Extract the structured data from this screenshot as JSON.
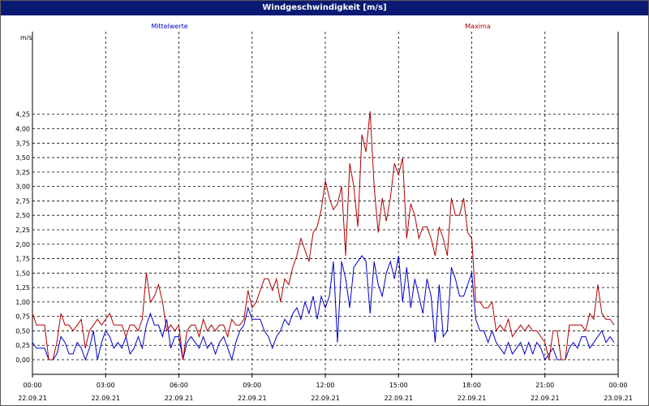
{
  "window": {
    "title": "Windgeschwindigkeit [m/s]"
  },
  "colors": {
    "title_bar": "#0a1a73",
    "series_mean": "#0000c8",
    "series_max": "#b00000",
    "grid": "#000000"
  },
  "chart_data": {
    "type": "line",
    "title": "Windgeschwindigkeit [m/s]",
    "ylabel": "m/s",
    "xlabel": "",
    "ylim": [
      -0.2,
      4.6
    ],
    "xlim": [
      "2021-09-22 00:00",
      "2021-09-23 00:00"
    ],
    "grid": true,
    "legend_position": "top",
    "y_ticks": [
      "0,00",
      "0,25",
      "0,50",
      "0,75",
      "1,00",
      "1,25",
      "1,50",
      "1,75",
      "2,00",
      "2,25",
      "2,50",
      "2,75",
      "3,00",
      "3,25",
      "3,50",
      "3,75",
      "4,00",
      "4,25"
    ],
    "x_ticks": [
      {
        "time": "00:00",
        "date": "22.09.21"
      },
      {
        "time": "03:00",
        "date": "22.09.21"
      },
      {
        "time": "06:00",
        "date": "22.09.21"
      },
      {
        "time": "09:00",
        "date": "22.09.21"
      },
      {
        "time": "12:00",
        "date": "22.09.21"
      },
      {
        "time": "15:00",
        "date": "22.09.21"
      },
      {
        "time": "18:00",
        "date": "22.09.21"
      },
      {
        "time": "21:00",
        "date": "22.09.21"
      },
      {
        "time": "00:00",
        "date": "23.09.21"
      }
    ],
    "series": [
      {
        "name": "Mittelwerte",
        "color": "#0000c8",
        "x": [
          "00:00",
          "00:10",
          "00:20",
          "00:30",
          "00:40",
          "00:50",
          "01:00",
          "01:10",
          "01:20",
          "01:30",
          "01:40",
          "01:50",
          "02:00",
          "02:10",
          "02:20",
          "02:30",
          "02:40",
          "02:50",
          "03:00",
          "03:10",
          "03:20",
          "03:30",
          "03:40",
          "03:50",
          "04:00",
          "04:10",
          "04:20",
          "04:30",
          "04:40",
          "04:50",
          "05:00",
          "05:10",
          "05:20",
          "05:30",
          "05:40",
          "05:50",
          "06:00",
          "06:10",
          "06:20",
          "06:30",
          "06:40",
          "06:50",
          "07:00",
          "07:10",
          "07:20",
          "07:30",
          "07:40",
          "07:50",
          "08:00",
          "08:10",
          "08:20",
          "08:30",
          "08:40",
          "08:50",
          "09:00",
          "09:10",
          "09:20",
          "09:30",
          "09:40",
          "09:50",
          "10:00",
          "10:10",
          "10:20",
          "10:30",
          "10:40",
          "10:50",
          "11:00",
          "11:10",
          "11:20",
          "11:30",
          "11:40",
          "11:50",
          "12:00",
          "12:10",
          "12:20",
          "12:30",
          "12:40",
          "12:50",
          "13:00",
          "13:10",
          "13:20",
          "13:30",
          "13:40",
          "13:50",
          "14:00",
          "14:10",
          "14:20",
          "14:30",
          "14:40",
          "14:50",
          "15:00",
          "15:10",
          "15:20",
          "15:30",
          "15:40",
          "15:50",
          "16:00",
          "16:10",
          "16:20",
          "16:30",
          "16:40",
          "16:50",
          "17:00",
          "17:10",
          "17:20",
          "17:30",
          "17:40",
          "17:50",
          "18:00",
          "18:10",
          "18:20",
          "18:30",
          "18:40",
          "18:50",
          "19:00",
          "19:10",
          "19:20",
          "19:30",
          "19:40",
          "19:50",
          "20:00",
          "20:10",
          "20:20",
          "20:30",
          "20:40",
          "20:50",
          "21:00",
          "21:10",
          "21:20",
          "21:30",
          "21:40",
          "21:50",
          "22:00",
          "22:10",
          "22:20",
          "22:30",
          "22:40",
          "22:50",
          "23:00",
          "23:10",
          "23:20",
          "23:30",
          "23:40",
          "23:50"
        ],
        "values": [
          0.3,
          0.2,
          0.2,
          0.2,
          0.0,
          0.0,
          0.1,
          0.4,
          0.3,
          0.1,
          0.1,
          0.3,
          0.2,
          0.0,
          0.2,
          0.5,
          0.0,
          0.3,
          0.5,
          0.4,
          0.2,
          0.3,
          0.2,
          0.4,
          0.1,
          0.2,
          0.4,
          0.2,
          0.6,
          0.8,
          0.6,
          0.6,
          0.4,
          0.7,
          0.2,
          0.4,
          0.4,
          0.0,
          0.3,
          0.4,
          0.3,
          0.2,
          0.4,
          0.2,
          0.3,
          0.1,
          0.3,
          0.4,
          0.2,
          0.0,
          0.3,
          0.5,
          0.6,
          0.9,
          0.7,
          0.7,
          0.7,
          0.5,
          0.4,
          0.2,
          0.4,
          0.5,
          0.7,
          0.6,
          0.8,
          0.9,
          0.7,
          1.0,
          0.8,
          1.1,
          0.7,
          1.1,
          0.9,
          1.1,
          1.7,
          0.3,
          1.7,
          1.4,
          0.9,
          1.6,
          1.7,
          1.8,
          1.7,
          0.8,
          1.7,
          1.3,
          1.1,
          1.5,
          1.7,
          1.4,
          1.8,
          1.0,
          1.6,
          0.9,
          1.4,
          1.1,
          0.8,
          1.4,
          1.1,
          0.3,
          1.3,
          0.4,
          0.5,
          1.6,
          1.4,
          1.1,
          1.1,
          1.3,
          1.5,
          0.7,
          0.5,
          0.5,
          0.3,
          0.5,
          0.3,
          0.2,
          0.1,
          0.3,
          0.1,
          0.2,
          0.3,
          0.1,
          0.3,
          0.1,
          0.3,
          0.2,
          0.0,
          0.1,
          0.2,
          0.0,
          0.0,
          0.0,
          0.2,
          0.3,
          0.2,
          0.4,
          0.4,
          0.2,
          0.3,
          0.4,
          0.5,
          0.3,
          0.4,
          0.3
        ]
      },
      {
        "name": "Maxima",
        "color": "#b00000",
        "x": [
          "00:00",
          "00:10",
          "00:20",
          "00:30",
          "00:40",
          "00:50",
          "01:00",
          "01:10",
          "01:20",
          "01:30",
          "01:40",
          "01:50",
          "02:00",
          "02:10",
          "02:20",
          "02:30",
          "02:40",
          "02:50",
          "03:00",
          "03:10",
          "03:20",
          "03:30",
          "03:40",
          "03:50",
          "04:00",
          "04:10",
          "04:20",
          "04:30",
          "04:40",
          "04:50",
          "05:00",
          "05:10",
          "05:20",
          "05:30",
          "05:40",
          "05:50",
          "06:00",
          "06:10",
          "06:20",
          "06:30",
          "06:40",
          "06:50",
          "07:00",
          "07:10",
          "07:20",
          "07:30",
          "07:40",
          "07:50",
          "08:00",
          "08:10",
          "08:20",
          "08:30",
          "08:40",
          "08:50",
          "09:00",
          "09:10",
          "09:20",
          "09:30",
          "09:40",
          "09:50",
          "10:00",
          "10:10",
          "10:20",
          "10:30",
          "10:40",
          "10:50",
          "11:00",
          "11:10",
          "11:20",
          "11:30",
          "11:40",
          "11:50",
          "12:00",
          "12:10",
          "12:20",
          "12:30",
          "12:40",
          "12:50",
          "13:00",
          "13:10",
          "13:20",
          "13:30",
          "13:40",
          "13:50",
          "14:00",
          "14:10",
          "14:20",
          "14:30",
          "14:40",
          "14:50",
          "15:00",
          "15:10",
          "15:20",
          "15:30",
          "15:40",
          "15:50",
          "16:00",
          "16:10",
          "16:20",
          "16:30",
          "16:40",
          "16:50",
          "17:00",
          "17:10",
          "17:20",
          "17:30",
          "17:40",
          "17:50",
          "18:00",
          "18:10",
          "18:20",
          "18:30",
          "18:40",
          "18:50",
          "19:00",
          "19:10",
          "19:20",
          "19:30",
          "19:40",
          "19:50",
          "20:00",
          "20:10",
          "20:20",
          "20:30",
          "20:40",
          "20:50",
          "21:00",
          "21:10",
          "21:20",
          "21:30",
          "21:40",
          "21:50",
          "22:00",
          "22:10",
          "22:20",
          "22:30",
          "22:40",
          "22:50",
          "23:00",
          "23:10",
          "23:20",
          "23:30",
          "23:40",
          "23:50"
        ],
        "values": [
          0.8,
          0.6,
          0.6,
          0.6,
          0.0,
          0.0,
          0.3,
          0.8,
          0.6,
          0.6,
          0.5,
          0.6,
          0.7,
          0.2,
          0.5,
          0.6,
          0.7,
          0.6,
          0.7,
          0.8,
          0.6,
          0.6,
          0.6,
          0.4,
          0.6,
          0.6,
          0.5,
          0.7,
          1.5,
          1.0,
          1.1,
          1.3,
          1.0,
          0.5,
          0.6,
          0.5,
          0.6,
          0.0,
          0.5,
          0.6,
          0.6,
          0.4,
          0.7,
          0.5,
          0.6,
          0.5,
          0.6,
          0.6,
          0.4,
          0.7,
          0.6,
          0.6,
          0.7,
          1.2,
          0.9,
          1.0,
          1.2,
          1.4,
          1.4,
          1.2,
          1.4,
          1.0,
          1.4,
          1.3,
          1.6,
          1.8,
          2.1,
          1.9,
          1.7,
          2.2,
          2.3,
          2.6,
          3.1,
          2.8,
          2.6,
          2.7,
          3.0,
          1.8,
          3.4,
          3.0,
          2.3,
          3.9,
          3.6,
          4.3,
          3.0,
          2.2,
          2.8,
          2.4,
          2.8,
          3.4,
          3.2,
          3.5,
          2.1,
          2.7,
          2.5,
          2.1,
          2.3,
          2.3,
          2.1,
          1.8,
          2.3,
          2.1,
          1.8,
          2.8,
          2.5,
          2.5,
          2.8,
          2.2,
          2.1,
          1.0,
          1.0,
          0.9,
          0.9,
          1.0,
          0.5,
          0.6,
          0.5,
          0.7,
          0.4,
          0.5,
          0.6,
          0.5,
          0.6,
          0.5,
          0.5,
          0.4,
          0.3,
          0.0,
          0.5,
          0.5,
          0.0,
          0.0,
          0.6,
          0.6,
          0.6,
          0.6,
          0.5,
          0.8,
          0.7,
          1.3,
          0.8,
          0.7,
          0.7,
          0.6
        ]
      }
    ]
  }
}
